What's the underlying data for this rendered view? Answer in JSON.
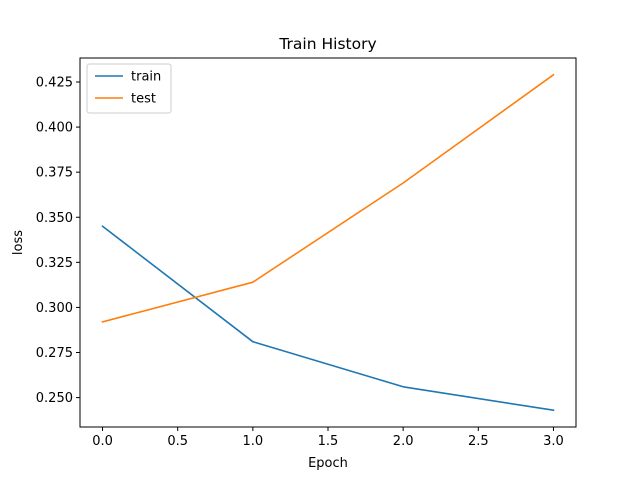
{
  "chart_data": {
    "type": "line",
    "title": "Train History",
    "xlabel": "Epoch",
    "ylabel": "loss",
    "x": [
      0,
      1,
      2,
      3
    ],
    "series": [
      {
        "name": "train",
        "color": "#1f77b4",
        "values": [
          0.345,
          0.281,
          0.256,
          0.243
        ]
      },
      {
        "name": "test",
        "color": "#ff7f0e",
        "values": [
          0.292,
          0.314,
          0.369,
          0.429
        ]
      }
    ],
    "xlim": [
      -0.15,
      3.15
    ],
    "ylim": [
      0.2337,
      0.4383
    ],
    "xticks": [
      0.0,
      0.5,
      1.0,
      1.5,
      2.0,
      2.5,
      3.0
    ],
    "xtick_labels": [
      "0.0",
      "0.5",
      "1.0",
      "1.5",
      "2.0",
      "2.5",
      "3.0"
    ],
    "yticks": [
      0.25,
      0.275,
      0.3,
      0.325,
      0.35,
      0.375,
      0.4,
      0.425
    ],
    "ytick_labels": [
      "0.250",
      "0.275",
      "0.300",
      "0.325",
      "0.350",
      "0.375",
      "0.400",
      "0.425"
    ],
    "grid": false,
    "legend_position": "top-left"
  }
}
